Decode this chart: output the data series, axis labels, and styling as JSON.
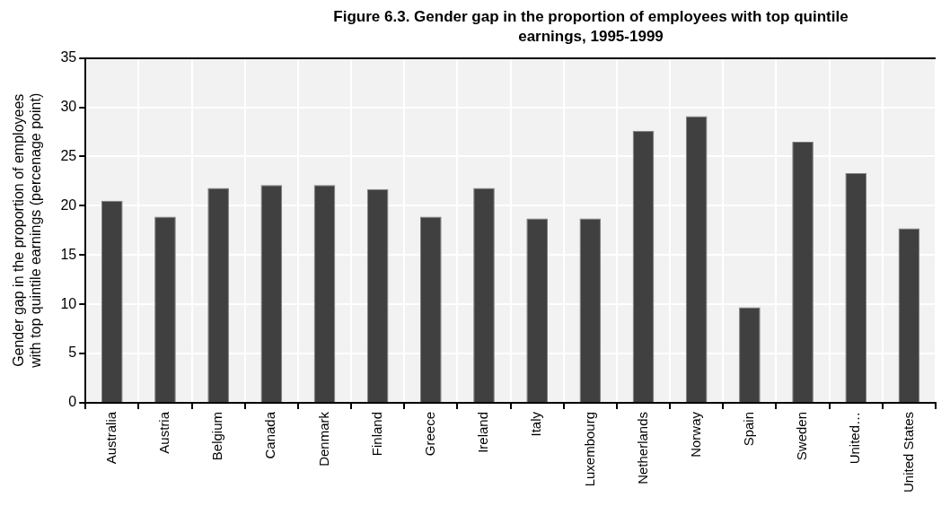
{
  "chart_data": {
    "type": "bar",
    "title": "Figure 6.3. Gender gap in the proportion of employees with top quintile earnings, 1995-1999",
    "ylabel": "Gender gap in the proportion of employees with top quintile earnings (percenage point)",
    "categories": [
      "Australia",
      "Austria",
      "Belgium",
      "Canada",
      "Denmark",
      "Finland",
      "Greece",
      "Ireland",
      "Italy",
      "Luxembourg",
      "Netherlands",
      "Norway",
      "Spain",
      "Sweden",
      "United…",
      "United States"
    ],
    "values": [
      20.5,
      18.9,
      21.8,
      22.1,
      22.1,
      21.7,
      18.9,
      21.8,
      18.7,
      18.7,
      27.6,
      29.1,
      9.7,
      26.5,
      23.3,
      17.7
    ],
    "color": "#404040",
    "ylim": [
      0,
      35
    ],
    "yticks": [
      0,
      5,
      10,
      15,
      20,
      25,
      30,
      35
    ],
    "grid": true,
    "legend": false
  }
}
